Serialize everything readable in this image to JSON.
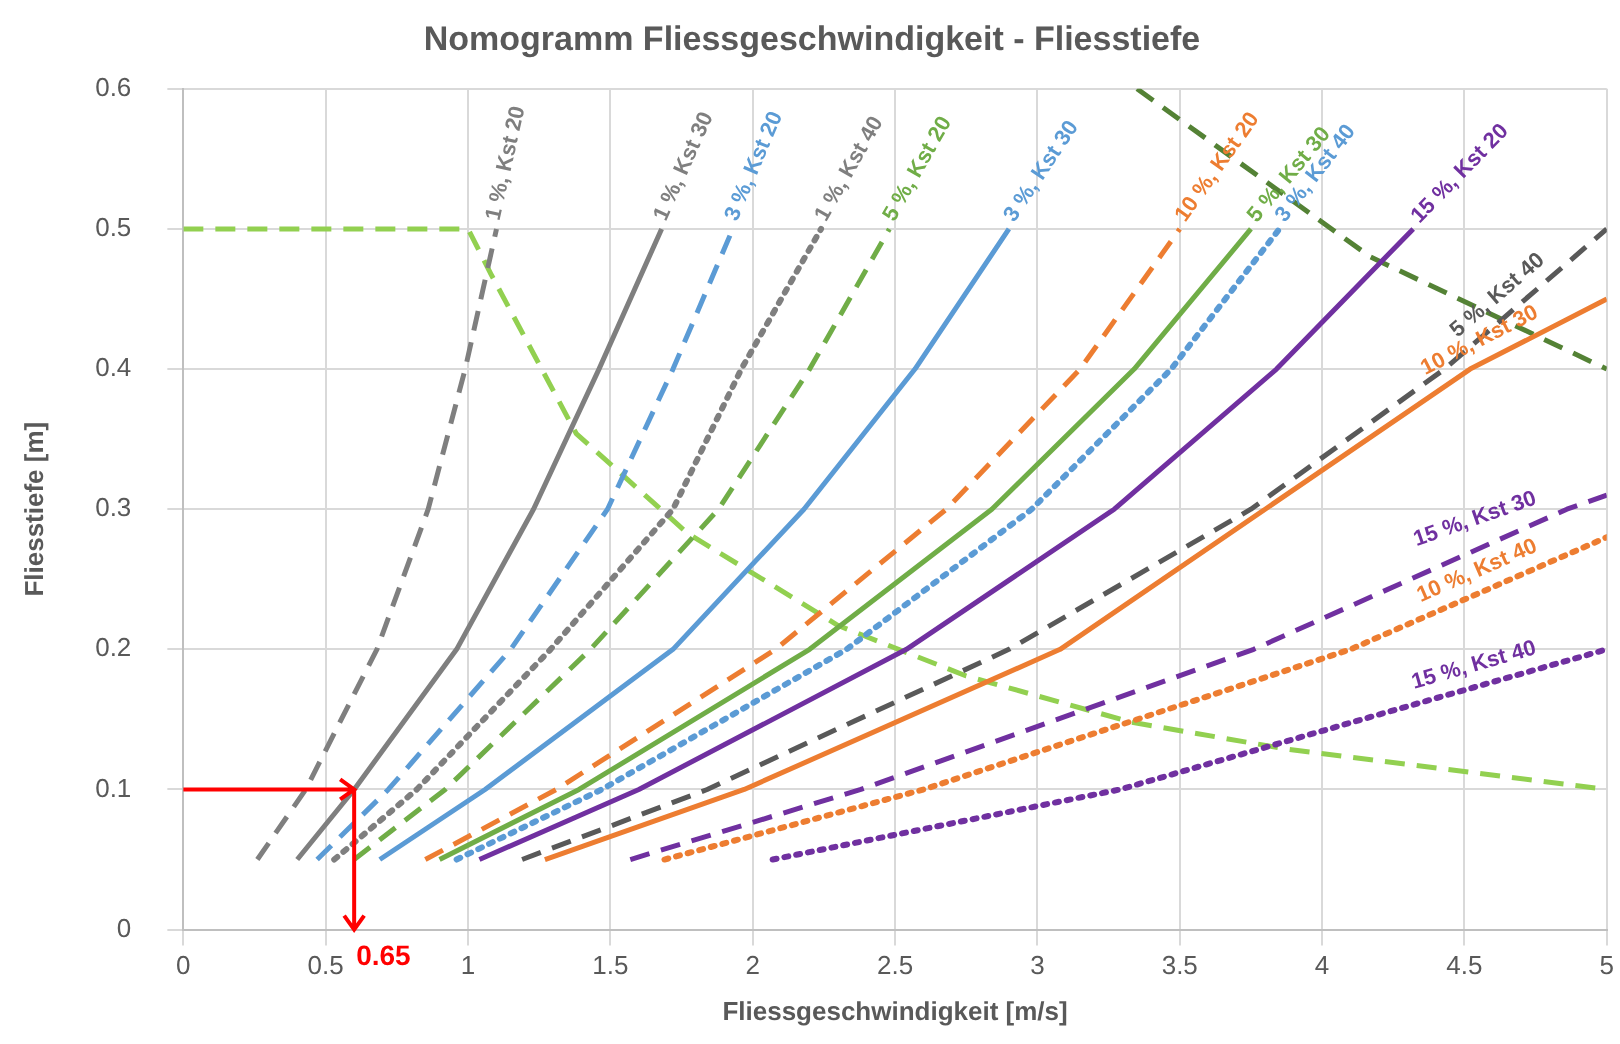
{
  "chart_data": {
    "type": "line",
    "title": "Nomogramm Fliessgeschwindigkeit - Fliesstiefe",
    "xlabel": "Fliessgeschwindigkeit [m/s]",
    "ylabel": "Fliesstiefe [m]",
    "xlim": [
      0,
      5
    ],
    "xticks": [
      0,
      0.5,
      1,
      1.5,
      2,
      2.5,
      3,
      3.5,
      4,
      4.5,
      5
    ],
    "ylim": [
      0,
      0.6
    ],
    "yticks": [
      0,
      0.1,
      0.2,
      0.3,
      0.4,
      0.5,
      0.6
    ],
    "grid": true,
    "legend": false,
    "marker": "none",
    "annotations": [
      {
        "text": "0.65",
        "x": 0.6,
        "y": 0.1
      }
    ],
    "series": [
      {
        "name": "1 %, Kst 20",
        "color": "#7f7f7f",
        "line_style": "dashed",
        "x": [
          0.26,
          0.43,
          0.68,
          0.86,
          0.99,
          1.1
        ],
        "values": [
          0.05,
          0.1,
          0.2,
          0.3,
          0.4,
          0.5
        ]
      },
      {
        "name": "1 %, Kst 30",
        "color": "#7f7f7f",
        "line_style": "solid",
        "x": [
          0.4,
          0.6,
          0.96,
          1.23,
          1.46,
          1.68
        ],
        "values": [
          0.05,
          0.1,
          0.2,
          0.3,
          0.4,
          0.5
        ]
      },
      {
        "name": "1 %, Kst 40",
        "color": "#7f7f7f",
        "line_style": "dotted",
        "x": [
          0.53,
          0.82,
          1.29,
          1.72,
          1.96,
          2.24
        ],
        "values": [
          0.05,
          0.1,
          0.2,
          0.3,
          0.4,
          0.5
        ]
      },
      {
        "name": "3 %, Kst 20",
        "color": "#5b9bd5",
        "line_style": "dashed",
        "x": [
          0.47,
          0.72,
          1.15,
          1.49,
          1.72,
          1.93
        ],
        "values": [
          0.05,
          0.1,
          0.2,
          0.3,
          0.4,
          0.5
        ]
      },
      {
        "name": "5 %, Kst 20",
        "color": "#70ad47",
        "line_style": "dashed",
        "x": [
          0.6,
          0.92,
          1.43,
          1.88,
          2.2,
          2.48
        ],
        "values": [
          0.05,
          0.1,
          0.2,
          0.3,
          0.4,
          0.5
        ]
      },
      {
        "name": "3 %, Kst 30",
        "color": "#5b9bd5",
        "line_style": "solid",
        "x": [
          0.69,
          1.06,
          1.72,
          2.18,
          2.57,
          2.9
        ],
        "values": [
          0.05,
          0.1,
          0.2,
          0.3,
          0.4,
          0.5
        ]
      },
      {
        "name": "10 %, Kst 20",
        "color": "#ed7d31",
        "line_style": "dashed",
        "x": [
          0.85,
          1.31,
          2.08,
          2.68,
          3.15,
          3.5
        ],
        "values": [
          0.05,
          0.1,
          0.2,
          0.3,
          0.4,
          0.5
        ]
      },
      {
        "name": "5 %, Kst 30",
        "color": "#70ad47",
        "line_style": "solid",
        "x": [
          0.9,
          1.39,
          2.2,
          2.84,
          3.34,
          3.75
        ],
        "values": [
          0.05,
          0.1,
          0.2,
          0.3,
          0.4,
          0.5
        ]
      },
      {
        "name": "3 %, Kst 40",
        "color": "#5b9bd5",
        "line_style": "dotted",
        "x": [
          0.96,
          1.47,
          2.33,
          2.98,
          3.47,
          3.85
        ],
        "values": [
          0.05,
          0.1,
          0.2,
          0.3,
          0.4,
          0.5
        ]
      },
      {
        "name": "15 %, Kst 20",
        "color": "#7030a0",
        "line_style": "solid",
        "x": [
          1.04,
          1.6,
          2.54,
          3.27,
          3.84,
          4.32
        ],
        "values": [
          0.05,
          0.1,
          0.2,
          0.3,
          0.4,
          0.5
        ]
      },
      {
        "name": "5 %, Kst 40",
        "color": "#595959",
        "line_style": "dashed",
        "x": [
          1.19,
          1.84,
          2.9,
          3.75,
          4.43,
          5
        ],
        "values": [
          0.05,
          0.1,
          0.2,
          0.3,
          0.4,
          0.5
        ]
      },
      {
        "name": "10 %, Kst 30",
        "color": "#ed7d31",
        "line_style": "solid",
        "x": [
          1.27,
          1.97,
          3.08,
          3.8,
          4.52,
          5
        ],
        "values": [
          0.05,
          0.1,
          0.2,
          0.3,
          0.4,
          0.45
        ]
      },
      {
        "name": "15 %, Kst 30",
        "color": "#7030a0",
        "line_style": "dashed",
        "x": [
          1.57,
          2.38,
          3.76,
          4.86,
          5
        ],
        "values": [
          0.05,
          0.1,
          0.2,
          0.3,
          0.31
        ]
      },
      {
        "name": "10 %, Kst 40",
        "color": "#ed7d31",
        "line_style": "dotted",
        "x": [
          1.69,
          2.6,
          4.1,
          5
        ],
        "values": [
          0.05,
          0.1,
          0.2,
          0.28
        ]
      },
      {
        "name": "15 %, Kst 40",
        "color": "#7030a0",
        "line_style": "dotted",
        "x": [
          2.07,
          3.29,
          4.14,
          5
        ],
        "values": [
          0.05,
          0.1,
          0.15,
          0.2
        ]
      },
      {
        "color": "#92d050",
        "line_style": "dashed",
        "x": [
          0,
          0.94,
          1,
          1.08,
          1.38,
          1.77,
          2.3,
          2.75,
          3.33,
          3.87,
          5
        ],
        "values": [
          0.5,
          0.5,
          0.5,
          0.468,
          0.354,
          0.283,
          0.217,
          0.181,
          0.148,
          0.129,
          0.1
        ]
      },
      {
        "color": "#548235",
        "line_style": "dashed",
        "x": [
          3.35,
          4.17,
          5
        ],
        "values": [
          0.6,
          0.48,
          0.4
        ]
      }
    ]
  }
}
